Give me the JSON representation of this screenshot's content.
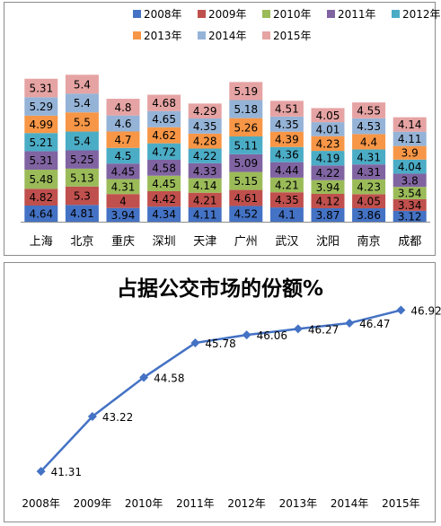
{
  "chart_data": [
    {
      "type": "bar",
      "stacked": true,
      "categories": [
        "上海",
        "北京",
        "重庆",
        "深圳",
        "天津",
        "广州",
        "武汉",
        "沈阳",
        "南京",
        "成都"
      ],
      "series": [
        {
          "name": "2008年",
          "color": "#4472c4",
          "values": [
            4.64,
            4.81,
            3.94,
            4.34,
            4.11,
            4.52,
            4.1,
            3.87,
            3.86,
            3.12
          ]
        },
        {
          "name": "2009年",
          "color": "#c0504d",
          "values": [
            4.82,
            5.3,
            4,
            4.42,
            4.21,
            4.61,
            4.35,
            4.12,
            4.05,
            3.34
          ]
        },
        {
          "name": "2010年",
          "color": "#9bbb59",
          "values": [
            5.48,
            5.13,
            4.31,
            4.45,
            4.14,
            5.15,
            4.21,
            3.94,
            4.23,
            3.54
          ]
        },
        {
          "name": "2011年",
          "color": "#8064a2",
          "values": [
            5.31,
            5.25,
            4.45,
            4.58,
            4.33,
            5.09,
            4.44,
            4.22,
            4.31,
            3.8
          ]
        },
        {
          "name": "2012年",
          "color": "#4bacc6",
          "values": [
            5.21,
            5.4,
            4.5,
            4.72,
            4.22,
            5.11,
            4.36,
            4.19,
            4.31,
            4.04
          ]
        },
        {
          "name": "2013年",
          "color": "#f79646",
          "values": [
            4.99,
            5.5,
            4.7,
            4.62,
            4.28,
            5.26,
            4.39,
            4.23,
            4.4,
            3.9
          ]
        },
        {
          "name": "2014年",
          "color": "#95b3d7",
          "values": [
            5.29,
            5.4,
            4.6,
            4.65,
            4.35,
            5.18,
            4.35,
            4.01,
            4.53,
            4.11
          ]
        },
        {
          "name": "2015年",
          "color": "#e6a3a3",
          "values": [
            5.31,
            5.4,
            4.8,
            4.68,
            4.29,
            5.19,
            4.51,
            4.05,
            4.55,
            4.14
          ]
        }
      ],
      "legend_position": "top",
      "grid": false
    },
    {
      "type": "line",
      "title": "占据公交市场的份额%",
      "x": [
        "2008年",
        "2009年",
        "2010年",
        "2011年",
        "2012年",
        "2013年",
        "2014年",
        "2015年"
      ],
      "series": [
        {
          "color": "#4472c4",
          "values": [
            41.31,
            43.22,
            44.58,
            45.78,
            46.06,
            46.27,
            46.47,
            46.92
          ]
        }
      ],
      "ylim": [
        40,
        47.5
      ],
      "grid": false
    }
  ]
}
